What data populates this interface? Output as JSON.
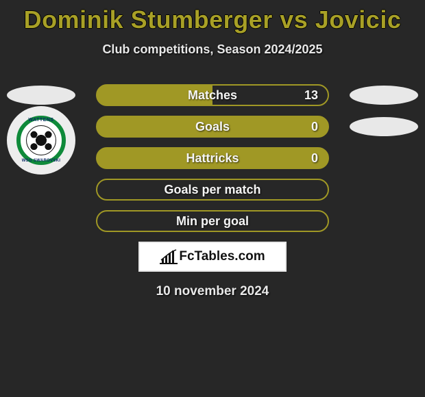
{
  "title": "Dominik Stumberger vs Jovicic",
  "subtitle": "Club competitions, Season 2024/2025",
  "colors": {
    "background": "#272727",
    "accent": "#a09825",
    "title_text": "#a8a026",
    "text_light": "#e8e8e8",
    "oval_bg": "#e8e8e8",
    "logo_ring": "#0f8a3a",
    "logo_text": "#0a2a66"
  },
  "left_logo": {
    "top_text": "WATTENS",
    "bottom_text": "WSG SWAROVSKI"
  },
  "rows": [
    {
      "label": "Matches",
      "fill": "left",
      "value": "13",
      "show_left_oval": true,
      "show_right_oval": true,
      "show_left_logo": false
    },
    {
      "label": "Goals",
      "fill": "full",
      "value": "0",
      "show_left_oval": false,
      "show_right_oval": true,
      "show_left_logo": true
    },
    {
      "label": "Hattricks",
      "fill": "full",
      "value": "0",
      "show_left_oval": false,
      "show_right_oval": false,
      "show_left_logo": false
    },
    {
      "label": "Goals per match",
      "fill": "none",
      "value": "",
      "show_left_oval": false,
      "show_right_oval": false,
      "show_left_logo": false
    },
    {
      "label": "Min per goal",
      "fill": "none",
      "value": "",
      "show_left_oval": false,
      "show_right_oval": false,
      "show_left_logo": false
    }
  ],
  "brand": "FcTables.com",
  "date": "10 november 2024"
}
